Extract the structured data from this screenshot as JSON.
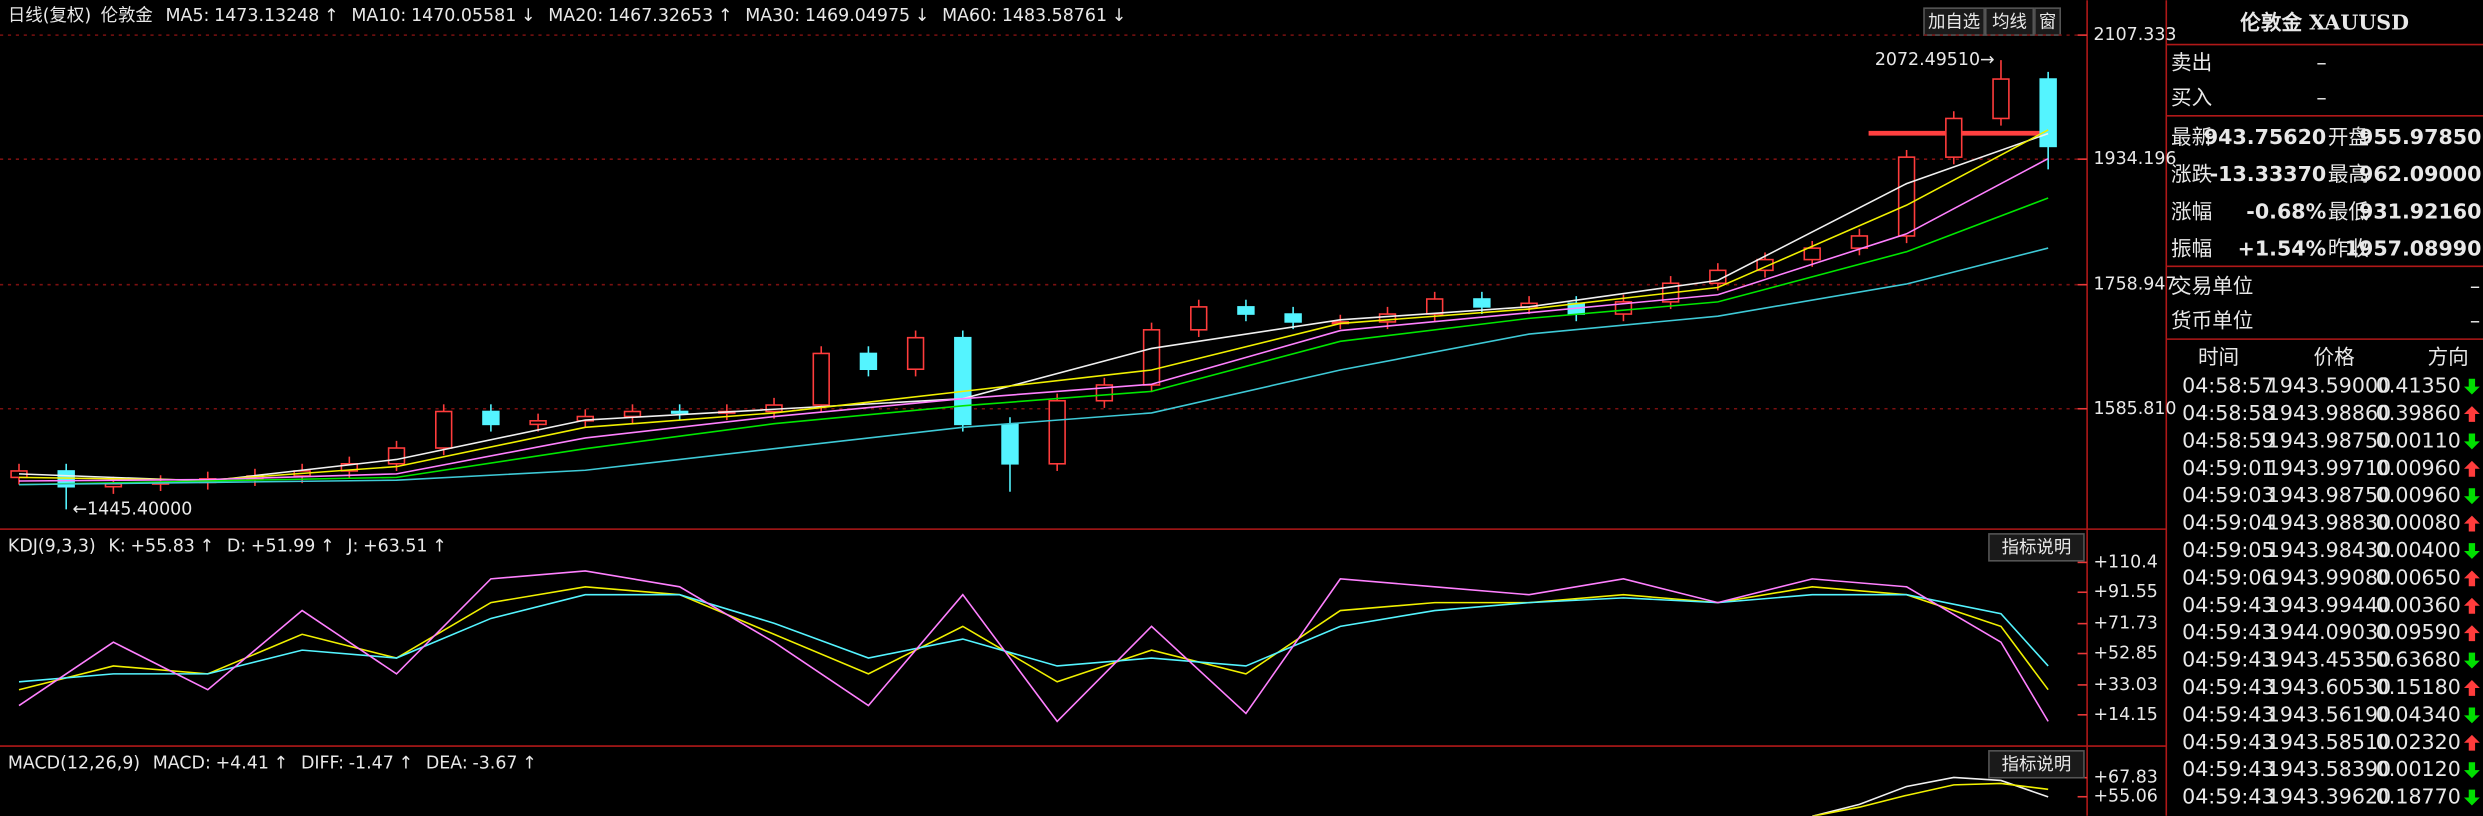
{
  "toolbar": {
    "buttons": [
      "加自选",
      "均线",
      "窗"
    ]
  },
  "chart_data": [
    {
      "type": "candlestick",
      "title": "日线(复权)",
      "subtitle": "伦敦金",
      "open": [
        1490,
        1499,
        1477,
        1481,
        1483,
        1488,
        1492,
        1499,
        1509,
        1531,
        1582,
        1564,
        1569,
        1575,
        1582,
        1580,
        1582,
        1591,
        1663,
        1641,
        1685,
        1564,
        1509,
        1597,
        1619,
        1696,
        1728,
        1718,
        1707,
        1707,
        1718,
        1739,
        1728,
        1733,
        1718,
        1735,
        1761,
        1779,
        1794,
        1810,
        1827,
        1937,
        1991,
        2046
      ],
      "close": [
        1499,
        1477,
        1481,
        1483,
        1488,
        1492,
        1499,
        1509,
        1531,
        1582,
        1564,
        1569,
        1575,
        1582,
        1580,
        1582,
        1591,
        1663,
        1641,
        1685,
        1564,
        1509,
        1597,
        1619,
        1696,
        1728,
        1718,
        1707,
        1707,
        1718,
        1739,
        1728,
        1733,
        1718,
        1735,
        1761,
        1779,
        1794,
        1810,
        1827,
        1937,
        1991,
        2046,
        1952
      ],
      "high": [
        1509,
        1509,
        1491,
        1493,
        1498,
        1502,
        1509,
        1519,
        1541,
        1592,
        1592,
        1579,
        1585,
        1592,
        1592,
        1592,
        1601,
        1673,
        1673,
        1695,
        1695,
        1574,
        1607,
        1629,
        1706,
        1738,
        1738,
        1728,
        1717,
        1728,
        1749,
        1749,
        1743,
        1743,
        1745,
        1771,
        1789,
        1804,
        1820,
        1837,
        1947,
        2001,
        2072.4951,
        2056
      ],
      "low": [
        1480,
        1445.4,
        1467,
        1471,
        1473,
        1478,
        1482,
        1489,
        1499,
        1521,
        1554,
        1554,
        1559,
        1565,
        1570,
        1570,
        1572,
        1581,
        1631,
        1631,
        1554,
        1470,
        1499,
        1587,
        1609,
        1686,
        1708,
        1697,
        1697,
        1697,
        1708,
        1718,
        1718,
        1708,
        1708,
        1725,
        1751,
        1769,
        1784,
        1800,
        1817,
        1927,
        1981,
        1920
      ],
      "up_color": "#ff3c3c",
      "down_color": "#54f4ff",
      "axis_color": "#e83a3a",
      "ylim": [
        1420,
        2156
      ],
      "yticks": [
        2107.333,
        1934.196,
        1758.947,
        {
          "value": 1585.81,
          "label": "1585.810"
        }
      ],
      "grid": true,
      "series": [
        {
          "name": "MA5:",
          "value_label": "1473.13248",
          "trend": "↑",
          "trend_color": "#ff3c3c",
          "color": "#f0f0f0",
          "x": [
            0,
            4,
            8,
            12,
            16,
            20,
            24,
            28,
            32,
            36,
            40,
            43
          ],
          "values": [
            1495,
            1485,
            1515,
            1570,
            1585,
            1600,
            1670,
            1710,
            1728,
            1765,
            1900,
            1970
          ]
        },
        {
          "name": "MA10:",
          "value_label": "1470.05581",
          "trend": "↓",
          "trend_color": "#54f4ff",
          "color": "#f0f000",
          "x": [
            0,
            4,
            8,
            12,
            16,
            20,
            24,
            28,
            32,
            36,
            40,
            43
          ],
          "values": [
            1490,
            1486,
            1505,
            1560,
            1580,
            1610,
            1640,
            1705,
            1725,
            1755,
            1870,
            1975
          ]
        },
        {
          "name": "MA20:",
          "value_label": "1467.32653",
          "trend": "↑",
          "trend_color": "#ff3c3c",
          "color": "#ff80ff",
          "x": [
            0,
            4,
            8,
            12,
            16,
            20,
            24,
            28,
            32,
            36,
            40,
            43
          ],
          "values": [
            1485,
            1487,
            1495,
            1545,
            1575,
            1600,
            1620,
            1695,
            1720,
            1745,
            1830,
            1935
          ]
        },
        {
          "name": "MA30:",
          "value_label": "1469.04975",
          "trend": "↓",
          "trend_color": "#54f4ff",
          "color": "#00e600",
          "x": [
            0,
            4,
            8,
            12,
            16,
            20,
            24,
            28,
            32,
            36,
            40,
            43
          ],
          "values": [
            1480,
            1485,
            1490,
            1530,
            1565,
            1590,
            1610,
            1680,
            1712,
            1735,
            1805,
            1880
          ]
        },
        {
          "name": "MA60:",
          "value_label": "1483.58761",
          "trend": "↓",
          "trend_color": "#54f4ff",
          "color": "#3ec9d6",
          "x": [
            0,
            4,
            8,
            12,
            16,
            20,
            24,
            28,
            32,
            36,
            40,
            43
          ],
          "values": [
            1480,
            1483,
            1486,
            1500,
            1530,
            1560,
            1580,
            1640,
            1690,
            1715,
            1760,
            1810
          ]
        }
      ],
      "annotations": [
        {
          "label": "2072.49510→",
          "value": 2072.4951,
          "x": 42
        },
        {
          "label": "←1445.40000",
          "value": 1445.4,
          "x": 1
        }
      ]
    },
    {
      "type": "line",
      "title": "KDJ(9,3,3)",
      "button": "指标说明",
      "axis_color": "#e83a3a",
      "ylim": [
        -4.6,
        130.4
      ],
      "yticks": [
        {
          "value": 110.4,
          "label": "+110.4"
        },
        {
          "value": 91.55,
          "label": "+91.55"
        },
        {
          "value": 71.73,
          "label": "+71.73"
        },
        {
          "value": 52.85,
          "label": "+52.85"
        },
        {
          "value": 33.03,
          "label": "+33.03"
        },
        {
          "value": 14.15,
          "label": "+14.15"
        }
      ],
      "series": [
        {
          "name": "K:",
          "value_label": "+55.83",
          "trend": "↑",
          "trend_color": "#ff3c3c",
          "color": "#f0f000",
          "x": [
            0,
            2,
            4,
            6,
            8,
            10,
            12,
            14,
            16,
            18,
            20,
            22,
            24,
            26,
            28,
            30,
            32,
            34,
            36,
            38,
            40,
            42,
            43
          ],
          "values": [
            30,
            45,
            40,
            65,
            50,
            85,
            95,
            90,
            65,
            40,
            70,
            35,
            55,
            40,
            80,
            85,
            85,
            90,
            85,
            95,
            90,
            70,
            30
          ]
        },
        {
          "name": "D:",
          "value_label": "+51.99",
          "trend": "↑",
          "trend_color": "#ff3c3c",
          "color": "#54f4ff",
          "x": [
            0,
            2,
            4,
            6,
            8,
            10,
            12,
            14,
            16,
            18,
            20,
            22,
            24,
            26,
            28,
            30,
            32,
            34,
            36,
            38,
            40,
            42,
            43
          ],
          "values": [
            35,
            40,
            40,
            55,
            50,
            75,
            90,
            90,
            72,
            50,
            62,
            45,
            50,
            45,
            70,
            80,
            85,
            88,
            85,
            90,
            90,
            78,
            45
          ]
        },
        {
          "name": "J:",
          "value_label": "+63.51",
          "trend": "↑",
          "trend_color": "#ff3c3c",
          "color": "#ff80ff",
          "x": [
            0,
            2,
            4,
            6,
            8,
            10,
            12,
            14,
            16,
            18,
            20,
            22,
            24,
            26,
            28,
            30,
            32,
            34,
            36,
            38,
            40,
            42,
            43
          ],
          "values": [
            20,
            60,
            30,
            80,
            40,
            100,
            105,
            95,
            60,
            20,
            90,
            10,
            70,
            15,
            100,
            95,
            90,
            100,
            85,
            100,
            95,
            60,
            10
          ]
        }
      ]
    },
    {
      "type": "line",
      "title": "MACD(12,26,9)",
      "button": "指标说明",
      "axis_color": "#e83a3a",
      "ylim": [
        42.3,
        88
      ],
      "yticks": [
        {
          "value": 67.83,
          "label": "+67.83"
        },
        {
          "value": 55.06,
          "label": "+55.06"
        }
      ],
      "series": [
        {
          "name": "MACD:",
          "value_label": "+4.41",
          "trend": "↑",
          "trend_color": "#ff3c3c",
          "color": "#ff3c3c"
        },
        {
          "name": "DIFF:",
          "value_label": "-1.47",
          "trend": "↑",
          "trend_color": "#ff3c3c",
          "color": "#f0f0f0",
          "x": [
            38,
            39,
            40,
            41,
            42,
            43
          ],
          "values": [
            42,
            50,
            62,
            68,
            66,
            55
          ]
        },
        {
          "name": "DEA:",
          "value_label": "-3.67",
          "trend": "↑",
          "trend_color": "#ff3c3c",
          "color": "#f0f000",
          "x": [
            38,
            39,
            40,
            41,
            42,
            43
          ],
          "values": [
            42,
            48,
            56,
            63,
            64,
            60
          ]
        }
      ]
    }
  ],
  "quote": {
    "title": "伦敦金 XAUUSD",
    "title_color": "#3fd6e8",
    "book": [
      {
        "label": "卖出",
        "value": "–"
      },
      {
        "label": "买入",
        "value": "–"
      }
    ],
    "stats": [
      [
        {
          "label": "最新",
          "value": "943.75620",
          "color": "#00e000"
        },
        {
          "label": "开盘",
          "value": "955.97850",
          "color": "#00e000"
        }
      ],
      [
        {
          "label": "涨跌",
          "value": "-13.33370",
          "color": "#00e000"
        },
        {
          "label": "最高",
          "value": "962.09000",
          "color": "#ff3c3c"
        }
      ],
      [
        {
          "label": "涨幅",
          "value": "-0.68%",
          "color": "#00e000"
        },
        {
          "label": "最低",
          "value": "931.92160",
          "color": "#00e000"
        }
      ],
      [
        {
          "label": "振幅",
          "value": "+1.54%",
          "color": "#ff3c3c"
        },
        {
          "label": "昨收",
          "value": "1957.08990",
          "color": "#f0f0f0"
        }
      ]
    ],
    "units": [
      {
        "label": "交易单位",
        "value": "–"
      },
      {
        "label": "货币单位",
        "value": "–"
      }
    ],
    "trades": {
      "headers": [
        "时间",
        "价格",
        "方向"
      ],
      "up_color": "#ff3c3c",
      "down_color": "#00e000",
      "rows": [
        {
          "time": "04:58:57",
          "price": "1943.59000",
          "change": "0.41350",
          "direction": "down"
        },
        {
          "time": "04:58:58",
          "price": "1943.98860",
          "change": "0.39860",
          "direction": "up"
        },
        {
          "time": "04:58:59",
          "price": "1943.98750",
          "change": "0.00110",
          "direction": "down"
        },
        {
          "time": "04:59:01",
          "price": "1943.99710",
          "change": "0.00960",
          "direction": "up"
        },
        {
          "time": "04:59:03",
          "price": "1943.98750",
          "change": "0.00960",
          "direction": "down"
        },
        {
          "time": "04:59:04",
          "price": "1943.98830",
          "change": "0.00080",
          "direction": "up"
        },
        {
          "time": "04:59:05",
          "price": "1943.98430",
          "change": "0.00400",
          "direction": "down"
        },
        {
          "time": "04:59:06",
          "price": "1943.99080",
          "change": "0.00650",
          "direction": "up"
        },
        {
          "time": "04:59:43",
          "price": "1943.99440",
          "change": "0.00360",
          "direction": "up"
        },
        {
          "time": "04:59:43",
          "price": "1944.09030",
          "change": "0.09590",
          "direction": "up"
        },
        {
          "time": "04:59:43",
          "price": "1943.45350",
          "change": "0.63680",
          "direction": "down"
        },
        {
          "time": "04:59:43",
          "price": "1943.60530",
          "change": "0.15180",
          "direction": "up"
        },
        {
          "time": "04:59:43",
          "price": "1943.56190",
          "change": "0.04340",
          "direction": "down"
        },
        {
          "time": "04:59:43",
          "price": "1943.58510",
          "change": "0.02320",
          "direction": "up"
        },
        {
          "time": "04:59:43",
          "price": "1943.58390",
          "change": "0.00120",
          "direction": "down"
        },
        {
          "time": "04:59:43",
          "price": "1943.39620",
          "change": "0.18770",
          "direction": "down"
        }
      ]
    }
  }
}
